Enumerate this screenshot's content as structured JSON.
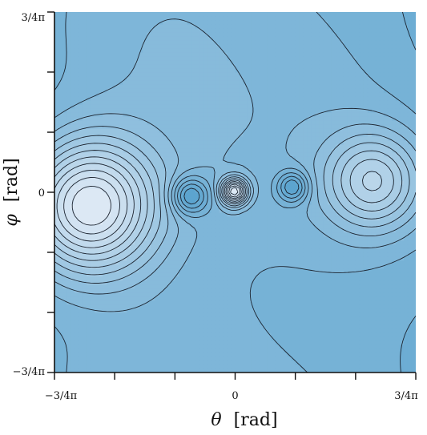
{
  "chart_data": {
    "type": "heatmap",
    "subtype": "filled-contour",
    "title": "",
    "xlabel": {
      "symbol": "θ",
      "unit": "[rad]"
    },
    "ylabel": {
      "symbol": "φ",
      "unit": "[rad]"
    },
    "xlim": [
      -2.356,
      2.356
    ],
    "ylim": [
      -2.356,
      2.356
    ],
    "grid": false,
    "legend": "none",
    "colormap": "Blues",
    "x_ticks": [
      {
        "value": -2.356,
        "label": "−3/4π"
      },
      {
        "value": -1.571,
        "label": ""
      },
      {
        "value": -0.785,
        "label": ""
      },
      {
        "value": 0,
        "label": "0"
      },
      {
        "value": 0.785,
        "label": ""
      },
      {
        "value": 1.571,
        "label": ""
      },
      {
        "value": 2.356,
        "label": "3/4π"
      }
    ],
    "y_ticks": [
      {
        "value": -2.356,
        "label": "−3/4π"
      },
      {
        "value": -1.571,
        "label": ""
      },
      {
        "value": -0.785,
        "label": ""
      },
      {
        "value": 0,
        "label": "0"
      },
      {
        "value": 0.785,
        "label": ""
      },
      {
        "value": 1.571,
        "label": ""
      },
      {
        "value": 2.356,
        "label": "3/4π"
      }
    ],
    "features": [
      {
        "kind": "maximum",
        "theta": -1.91,
        "phi": -0.18,
        "strength": 1.0,
        "width": 0.62
      },
      {
        "kind": "maximum",
        "theta": 1.81,
        "phi": 0.14,
        "strength": 0.55,
        "width": 0.45
      },
      {
        "kind": "minimum",
        "theta": -0.59,
        "phi": -0.05,
        "strength": 0.45,
        "width": 0.17
      },
      {
        "kind": "maximum",
        "theta": -0.01,
        "phi": 0.01,
        "strength": 0.9,
        "width": 0.12
      },
      {
        "kind": "minimum",
        "theta": 0.75,
        "phi": 0.07,
        "strength": 0.4,
        "width": 0.14
      }
    ],
    "levels": 16,
    "colors": {
      "low": "#5ca4cf",
      "high": "#dce8f4",
      "lines": "#1c2430"
    }
  }
}
